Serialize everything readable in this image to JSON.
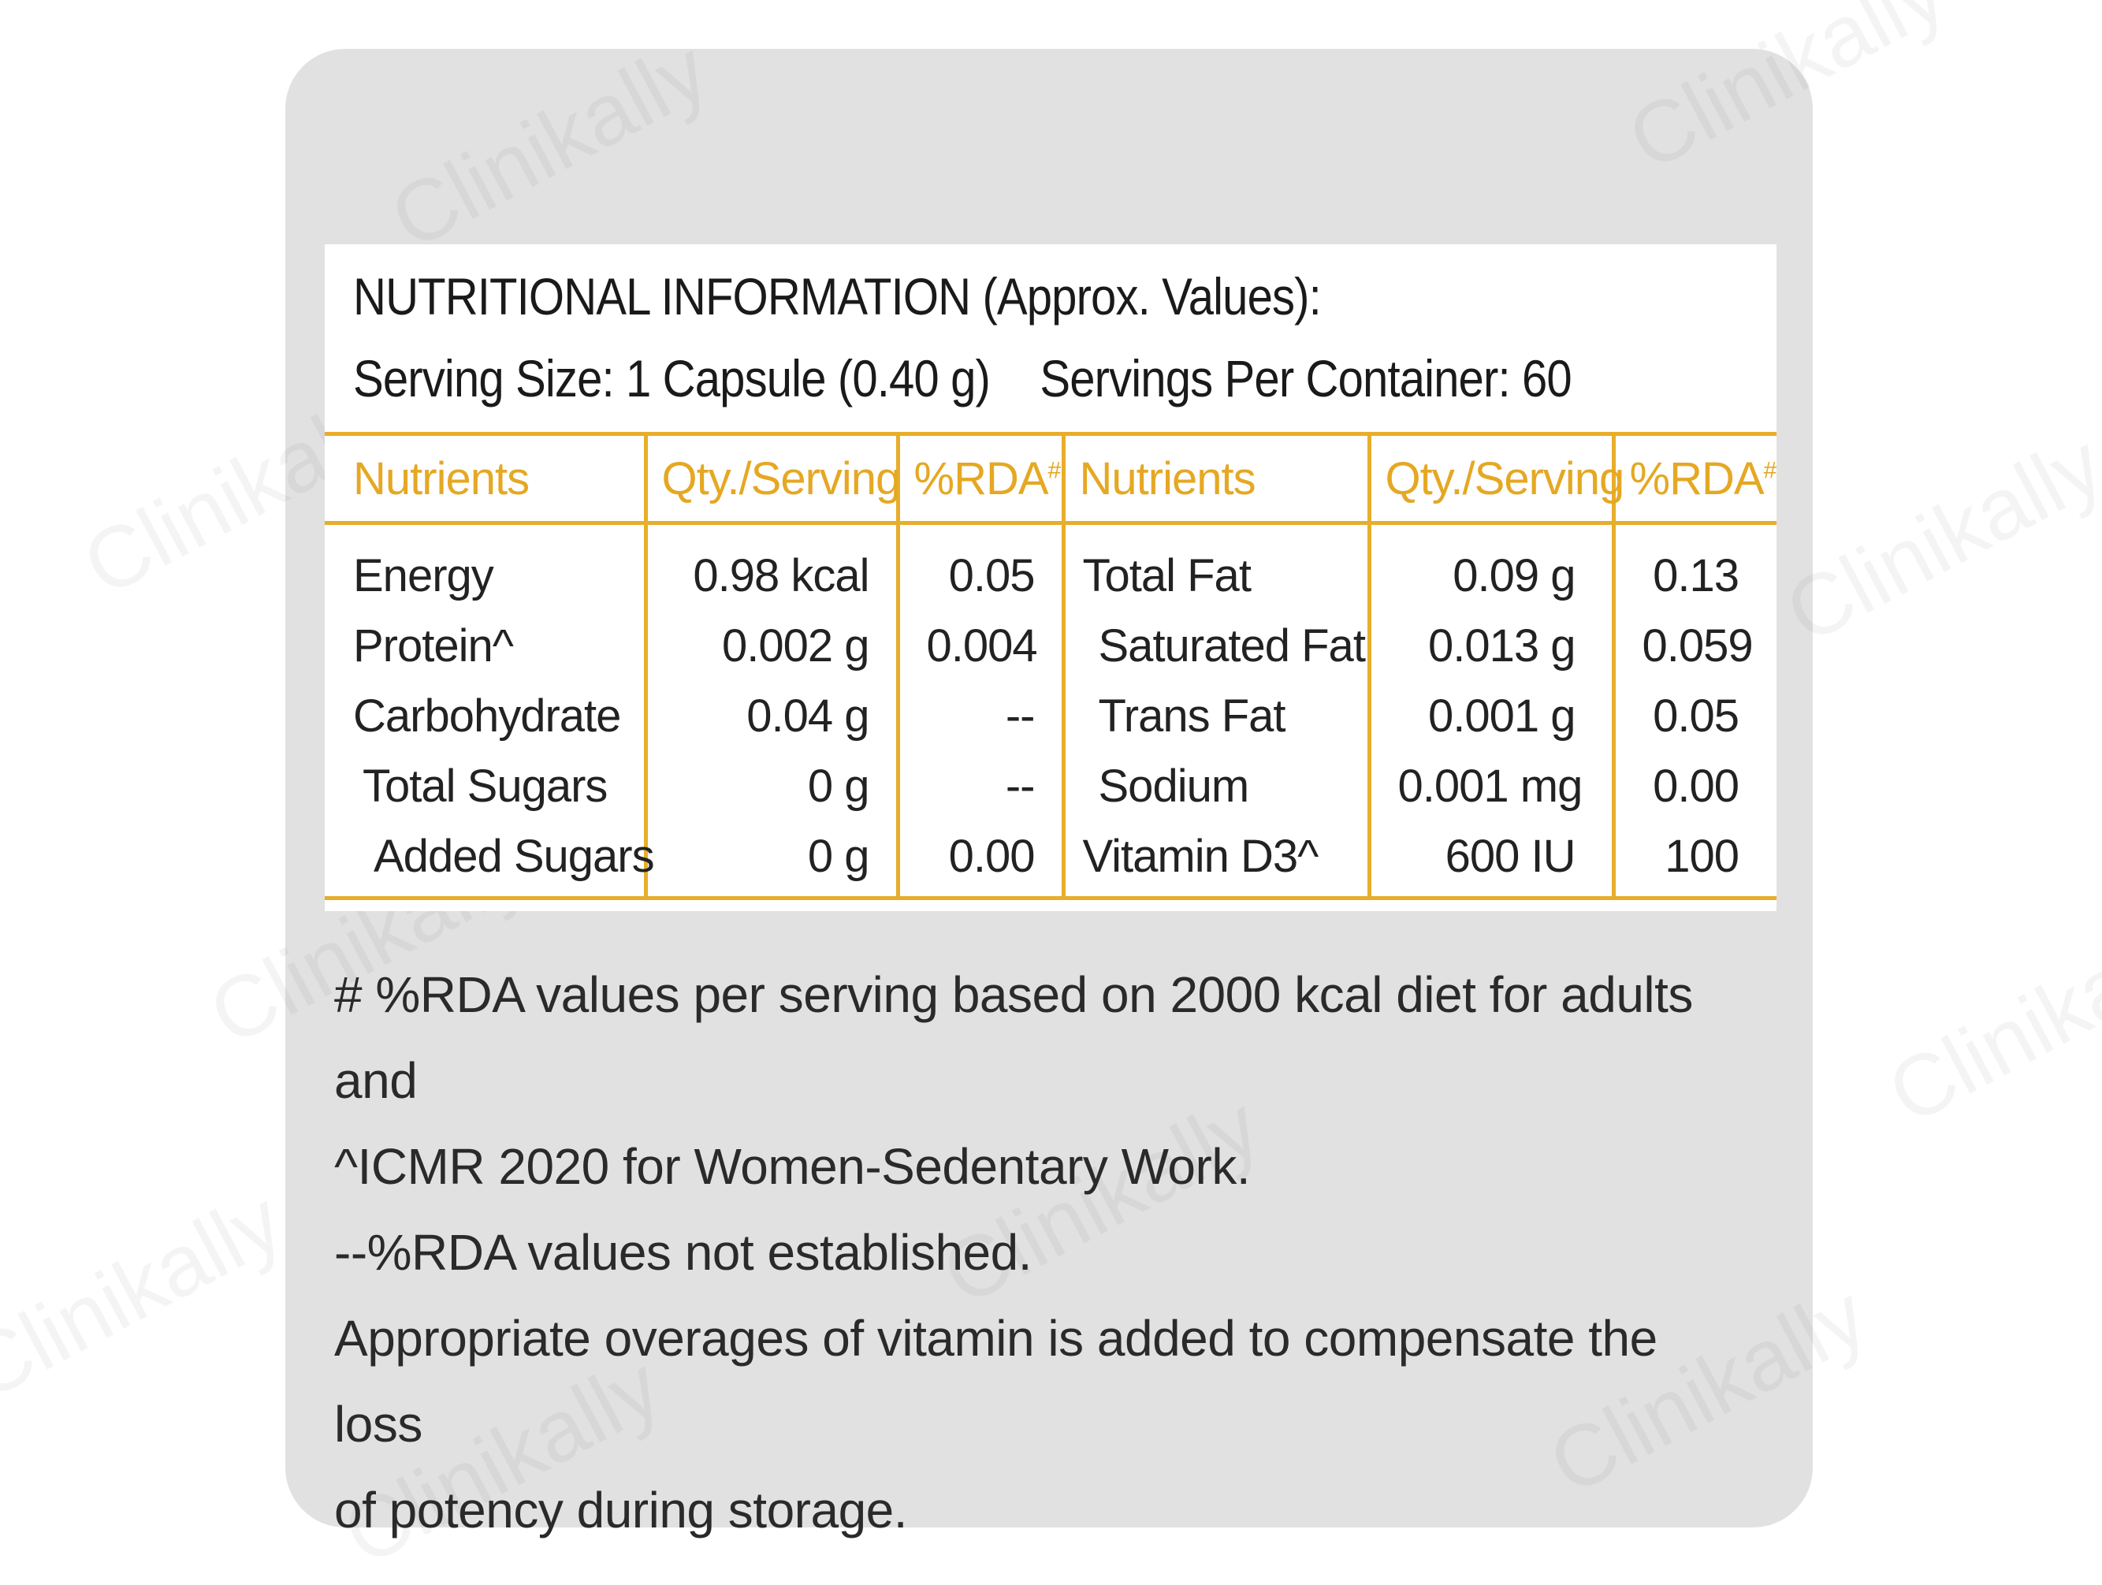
{
  "label": {
    "title": "NUTRITIONAL INFORMATION (Approx. Values):",
    "serving_size": "Serving Size: 1 Capsule (0.40 g)",
    "servings_per_container": "Servings Per Container: 60",
    "headers": {
      "nutrients": "Nutrients",
      "qty": "Qty./Serving",
      "rda": "%RDA",
      "rda_mark": "#"
    },
    "rows": [
      {
        "n1": "Energy",
        "q1": "0.98 kcal",
        "r1": "0.05",
        "n2": "Total Fat",
        "q2": "0.09 g",
        "r2": "0.13"
      },
      {
        "n1": "Protein^",
        "q1": "0.002 g",
        "r1": "0.004",
        "n2": "Saturated Fat",
        "q2": "0.013 g",
        "r2": "0.059"
      },
      {
        "n1": "Carbohydrate",
        "q1": "0.04 g",
        "r1": "--",
        "n2": "Trans Fat",
        "q2": "0.001 g",
        "r2": "0.05"
      },
      {
        "n1": "Total Sugars",
        "q1": "0 g",
        "r1": "--",
        "n2": "Sodium",
        "q2": "0.001 mg",
        "r2": "0.00"
      },
      {
        "n1": "Added Sugars",
        "q1": "0 g",
        "r1": "0.00",
        "n2": "Vitamin D3^",
        "q2": "600 IU",
        "r2": "100"
      }
    ]
  },
  "footnotes": {
    "line1": "# %RDA values per serving based on 2000 kcal diet for adults and",
    "line2": "^ICMR 2020 for Women-Sedentary Work.",
    "line3": "--%RDA values not established.",
    "line4": "Appropriate overages of vitamin is added to compensate the loss",
    "line5": "of potency during storage."
  },
  "watermark": "Clinikally"
}
